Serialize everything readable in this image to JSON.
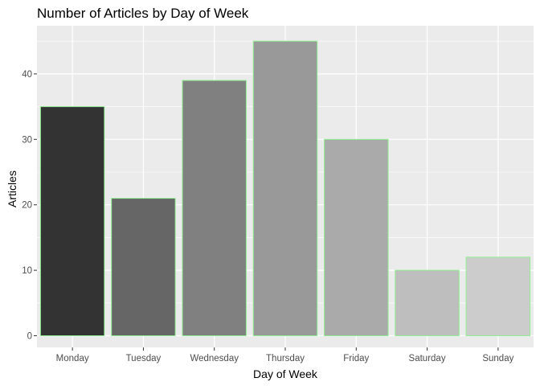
{
  "chart_data": {
    "type": "bar",
    "title": "Number of Articles by Day of Week",
    "xlabel": "Day of Week",
    "ylabel": "Articles",
    "categories": [
      "Monday",
      "Tuesday",
      "Wednesday",
      "Thursday",
      "Friday",
      "Saturday",
      "Sunday"
    ],
    "values": [
      35,
      21,
      39,
      45,
      30,
      10,
      12
    ],
    "bar_fills": [
      "#333333",
      "#666666",
      "#808080",
      "#999999",
      "#aaaaaa",
      "#bebebe",
      "#cccccc"
    ],
    "bar_outline": "#90ee90",
    "ylim": [
      0,
      47.25
    ],
    "yticks": [
      0,
      10,
      20,
      30,
      40
    ],
    "ytick_labels": [
      "0",
      "10",
      "20",
      "30",
      "40"
    ],
    "grid": true,
    "panel_background": "#ebebeb",
    "grid_color": "#ffffff",
    "legend": "none"
  }
}
